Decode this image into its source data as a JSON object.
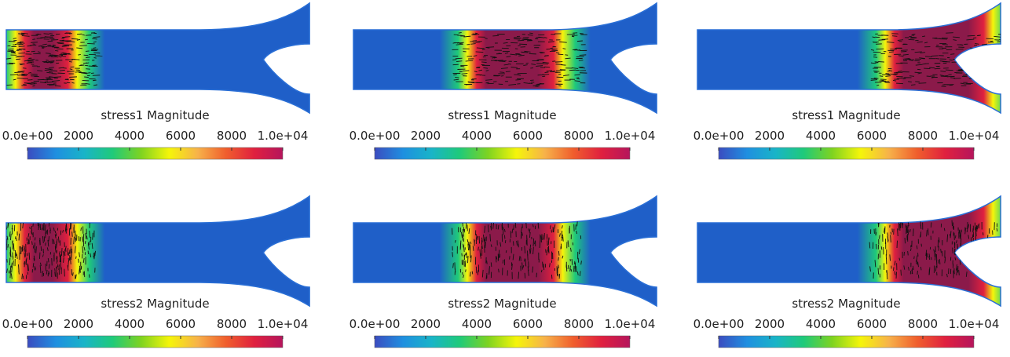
{
  "colormap": {
    "stops": [
      "#3b4cc0",
      "#1f8fe0",
      "#19b4c8",
      "#1fca7a",
      "#7ed321",
      "#f5f50a",
      "#f7b24a",
      "#f05e2d",
      "#e0203f",
      "#b5155c"
    ]
  },
  "colorbars": {
    "stress1": {
      "title": "stress1 Magnitude"
    },
    "stress2": {
      "title": "stress2 Magnitude"
    },
    "tick_labels": [
      "0.0e+00",
      "2000",
      "4000",
      "6000",
      "8000",
      "1.0e+04"
    ],
    "range": [
      0,
      10000
    ]
  },
  "panels": [
    {
      "id": "stress1-t1",
      "field": "stress1",
      "band": [
        0,
        0.27
      ],
      "arrows": "horizontal"
    },
    {
      "id": "stress1-t2",
      "field": "stress1",
      "band": [
        0.34,
        0.72
      ],
      "arrows": "horizontal"
    },
    {
      "id": "stress1-t3",
      "field": "stress1",
      "band": [
        0.58,
        1.0
      ],
      "arrows": "horizontal"
    },
    {
      "id": "stress2-t1",
      "field": "stress2",
      "band": [
        0,
        0.27
      ],
      "arrows": "vertical"
    },
    {
      "id": "stress2-t2",
      "field": "stress2",
      "band": [
        0.34,
        0.72
      ],
      "arrows": "vertical"
    },
    {
      "id": "stress2-t3",
      "field": "stress2",
      "band": [
        0.58,
        1.0
      ],
      "arrows": "vertical"
    }
  ],
  "colors": {
    "domain_base": "#1f5fc8",
    "arrow": "#111111"
  }
}
